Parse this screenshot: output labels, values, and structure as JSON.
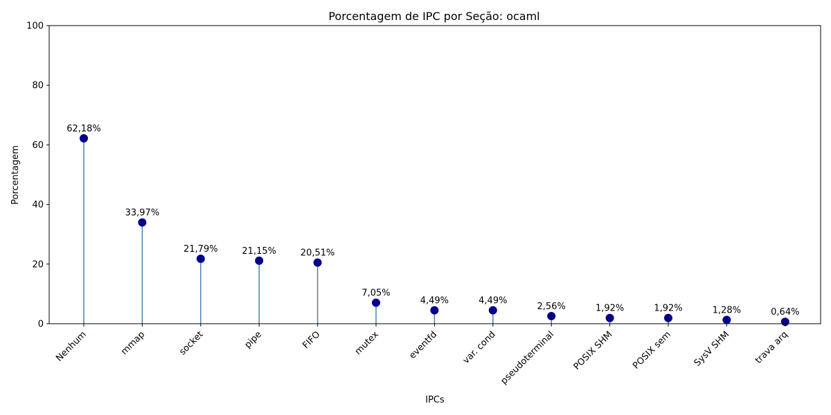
{
  "chart_data": {
    "type": "lollipop",
    "title": "Porcentagem de IPC por Seção: ocaml",
    "xlabel": "IPCs",
    "ylabel": "Porcentagem",
    "ylim": [
      0,
      100
    ],
    "yticks": [
      0,
      20,
      40,
      60,
      80,
      100
    ],
    "grid": false,
    "categories": [
      "Nenhum",
      "mmap",
      "socket",
      "pipe",
      "FIFO",
      "mutex",
      "eventfd",
      "var. cond",
      "pseudoterminal",
      "POSIX SHM",
      "POSIX sem",
      "SysV SHM",
      "trava arq"
    ],
    "values": [
      62.18,
      33.97,
      21.79,
      21.15,
      20.51,
      7.05,
      4.49,
      4.49,
      2.56,
      1.92,
      1.92,
      1.28,
      0.64
    ],
    "value_labels": [
      "62,18%",
      "33,97%",
      "21,79%",
      "21,15%",
      "20,51%",
      "7,05%",
      "4,49%",
      "4,49%",
      "2,56%",
      "1,92%",
      "1,92%",
      "1,28%",
      "0,64%"
    ],
    "colors": {
      "marker": "#00008b",
      "stem": "#4682b4"
    }
  }
}
